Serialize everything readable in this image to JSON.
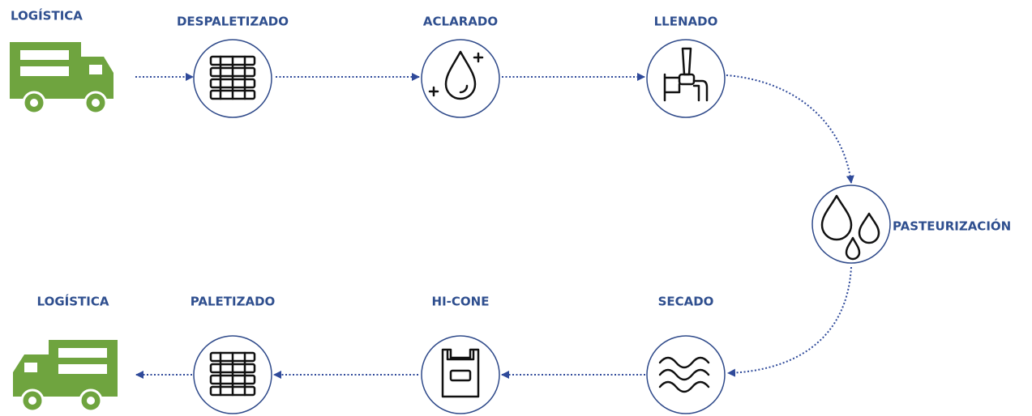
{
  "nodes": [
    {
      "label": "LOGÍSTICA"
    },
    {
      "label": "DESPALETIZADO"
    },
    {
      "label": "ACLARADO"
    },
    {
      "label": "LLENADO"
    },
    {
      "label": "PASTEURIZACIÓN"
    },
    {
      "label": "SECADO"
    },
    {
      "label": "HI-CONE"
    },
    {
      "label": "PALETIZADO"
    },
    {
      "label": "LOGÍSTICA"
    }
  ]
}
